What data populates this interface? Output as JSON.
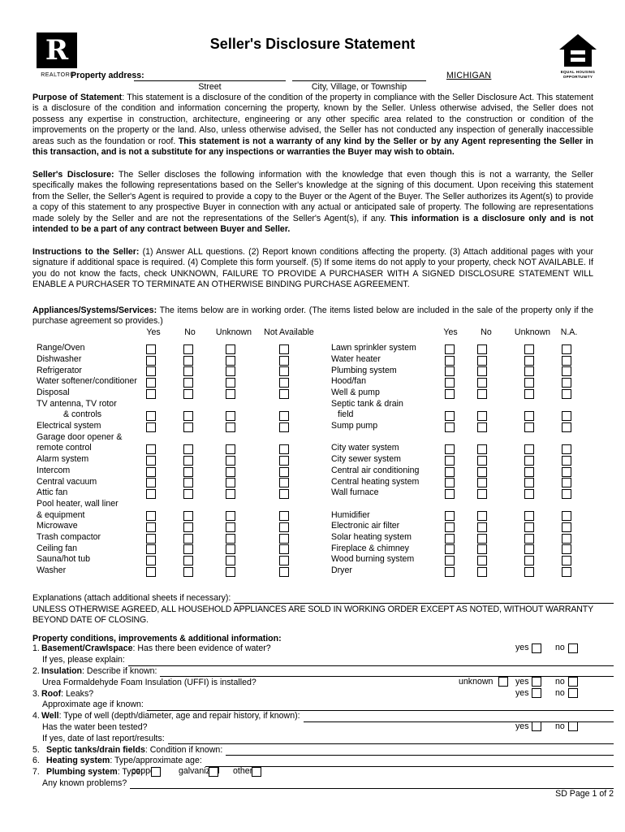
{
  "header": {
    "title": "Seller's Disclosure Statement",
    "realtor_logo": "R",
    "realtor_label": "REALTOR®",
    "state": "MICHIGAN",
    "eho_line1": "EQUAL HOUSING",
    "eho_line2": "OPPORTUNITY",
    "property_address_label": "Property address:",
    "street_label": "Street",
    "city_label": "City, Village, or Township"
  },
  "purpose": {
    "label": "Purpose of Statement",
    "text": ": This statement is a disclosure of the condition of the property in compliance with the Seller Disclosure Act.  This statement is a disclosure of the condition and information concerning the property, known by the Seller.  Unless otherwise advised, the Seller does not possess any expertise in construction,  architecture, engineering or any other specific area related to the construction or condition of the improvements on the property or the land.  Also, unless otherwise advised, the Seller has not conducted any inspection of generally inaccessible areas such as the foundation or roof. ",
    "bold": "This statement is not a warranty of any kind by the Seller or by any Agent representing the Seller in this transaction, and is not a substitute for any inspections or warranties the Buyer may wish to obtain."
  },
  "disclosure": {
    "label": "Seller's Disclosure:",
    "text": " The Seller discloses the following information with the knowledge that even though this is not a warranty, the Seller specifically makes the following representations based on the Seller's knowledge at the signing of this document.  Upon receiving this statement from the Seller, the Seller's Agent is required to provide a copy to the Buyer or the Agent of the Buyer.  The Seller authorizes its Agent(s) to provide a copy of this statement to any prospective Buyer in connection with any actual or anticipated sale of property.  The following are representations made solely by the Seller and are not the representations of the Seller's Agent(s), if any.  ",
    "bold": "This information is a disclosure only and is not intended to be a part of any contract between Buyer and Seller."
  },
  "instructions": {
    "label": "Instructions to the Seller:",
    "text": " (1) Answer ALL questions. (2) Report known conditions affecting the property. (3) Attach additional pages with your signature if additional space is required. (4) Complete this form yourself. (5) If some items do not apply to your property, check NOT AVAILABLE.  If you do not know the facts, check UNKNOWN, FAILURE TO PROVIDE A PURCHASER WITH A SIGNED DISCLOSURE STATEMENT WILL ENABLE A PURCHASER TO TERMINATE AN OTHERWISE BINDING PURCHASE AGREEMENT."
  },
  "appliances": {
    "label": "Appliances/Systems/Services:",
    "text": " The items below are in working order. (The items listed below are included in the sale of the property only if the purchase agreement so provides.)",
    "headers_left": [
      "Yes",
      "No",
      "Unknown",
      "Not Available"
    ],
    "headers_right": [
      "Yes",
      "No",
      "Unknown",
      "N.A."
    ],
    "rows": [
      {
        "l": "Range/Oven",
        "lb": true,
        "r": "Lawn sprinkler system",
        "rb": true
      },
      {
        "l": "Dishwasher",
        "lb": true,
        "r": "Water heater",
        "rb": true
      },
      {
        "l": "Refrigerator",
        "lb": true,
        "r": "Plumbing system",
        "rb": true
      },
      {
        "l": "Water softener/conditioner",
        "lb": true,
        "r": "Hood/fan",
        "rb": true
      },
      {
        "l": "Disposal",
        "lb": true,
        "r": "Well & pump",
        "rb": true
      },
      {
        "l": "TV antenna, TV rotor",
        "lb": false,
        "r": "Septic tank & drain",
        "rb": false
      },
      {
        "l": "& controls",
        "li": true,
        "lb": true,
        "r": "field",
        "ri": true,
        "rb": true
      },
      {
        "l": "Electrical system",
        "lb": true,
        "r": "Sump pump",
        "rb": true
      },
      {
        "l": "Garage door opener &",
        "lb": false,
        "r": "",
        "rb": false
      },
      {
        "l": "remote control",
        "lb": true,
        "r": "City water system",
        "rb": true
      },
      {
        "l": "Alarm system",
        "lb": true,
        "r": "City sewer system",
        "rb": true
      },
      {
        "l": "Intercom",
        "lb": true,
        "r": "Central air conditioning",
        "rb": true
      },
      {
        "l": "Central vacuum",
        "lb": true,
        "r": "Central heating system",
        "rb": true
      },
      {
        "l": "Attic fan",
        "lb": true,
        "r": "Wall furnace",
        "rb": true
      },
      {
        "l": "Pool heater, wall liner",
        "lb": false,
        "r": "",
        "rb": false
      },
      {
        "l": "& equipment",
        "lb": true,
        "r": "Humidifier",
        "rb": true
      },
      {
        "l": "Microwave",
        "lb": true,
        "r": "Electronic air filter",
        "rb": true
      },
      {
        "l": "Trash compactor",
        "lb": true,
        "r": "Solar heating system",
        "rb": true
      },
      {
        "l": "Ceiling fan",
        "lb": true,
        "r": "Fireplace & chimney",
        "rb": true
      },
      {
        "l": "Sauna/hot tub",
        "lb": true,
        "r": "Wood burning system",
        "rb": true
      },
      {
        "l": "Washer",
        "lb": true,
        "r": "Dryer",
        "rb": true
      }
    ]
  },
  "explanations_label": "Explanations (attach additional sheets if necessary):",
  "note": "UNLESS OTHERWISE AGREED, ALL HOUSEHOLD APPLIANCES ARE SOLD IN WORKING ORDER EXCEPT AS NOTED, WITHOUT WARRANTY BEYOND DATE OF CLOSING.",
  "conditions": {
    "title": "Property conditions, improvements & additional information:",
    "yes": "yes",
    "no": "no",
    "unknown": "unknown",
    "item1_num": "1.",
    "item1_bold": "Basement/Crawlspace",
    "item1_text": ":  Has there been evidence of water?",
    "item1_sub": "If yes, please explain:",
    "item2_num": "2.",
    "item2_bold": "Insulation",
    "item2_text": ":  Describe if known:",
    "item2_sub": "Urea Formaldehyde Foam Insulation (UFFI) is installed?",
    "item3_num": "3.",
    "item3_bold": "Roof",
    "item3_text": ":  Leaks?",
    "item3_sub": "Approximate age if known:",
    "item4_num": "4.",
    "item4_bold": "Well",
    "item4_text": ":  Type of well (depth/diameter, age and repair history, if known):",
    "item4_sub1": "Has the water been tested?",
    "item4_sub2": "If yes, date of last report/results:",
    "item5_num": "5.",
    "item5_bold": "Septic tanks/drain fields",
    "item5_text": ":  Condition if known:",
    "item6_num": "6.",
    "item6_bold": "Heating system",
    "item6_text": ":  Type/approximate age:",
    "item7_num": "7.",
    "item7_bold": "Plumbing system",
    "item7_text": ": Type:",
    "item7_copper": "copper",
    "item7_galvanized": "galvanized",
    "item7_other": "other",
    "item7_sub": "Any known problems?"
  },
  "footer": "SD Page 1 of 2"
}
